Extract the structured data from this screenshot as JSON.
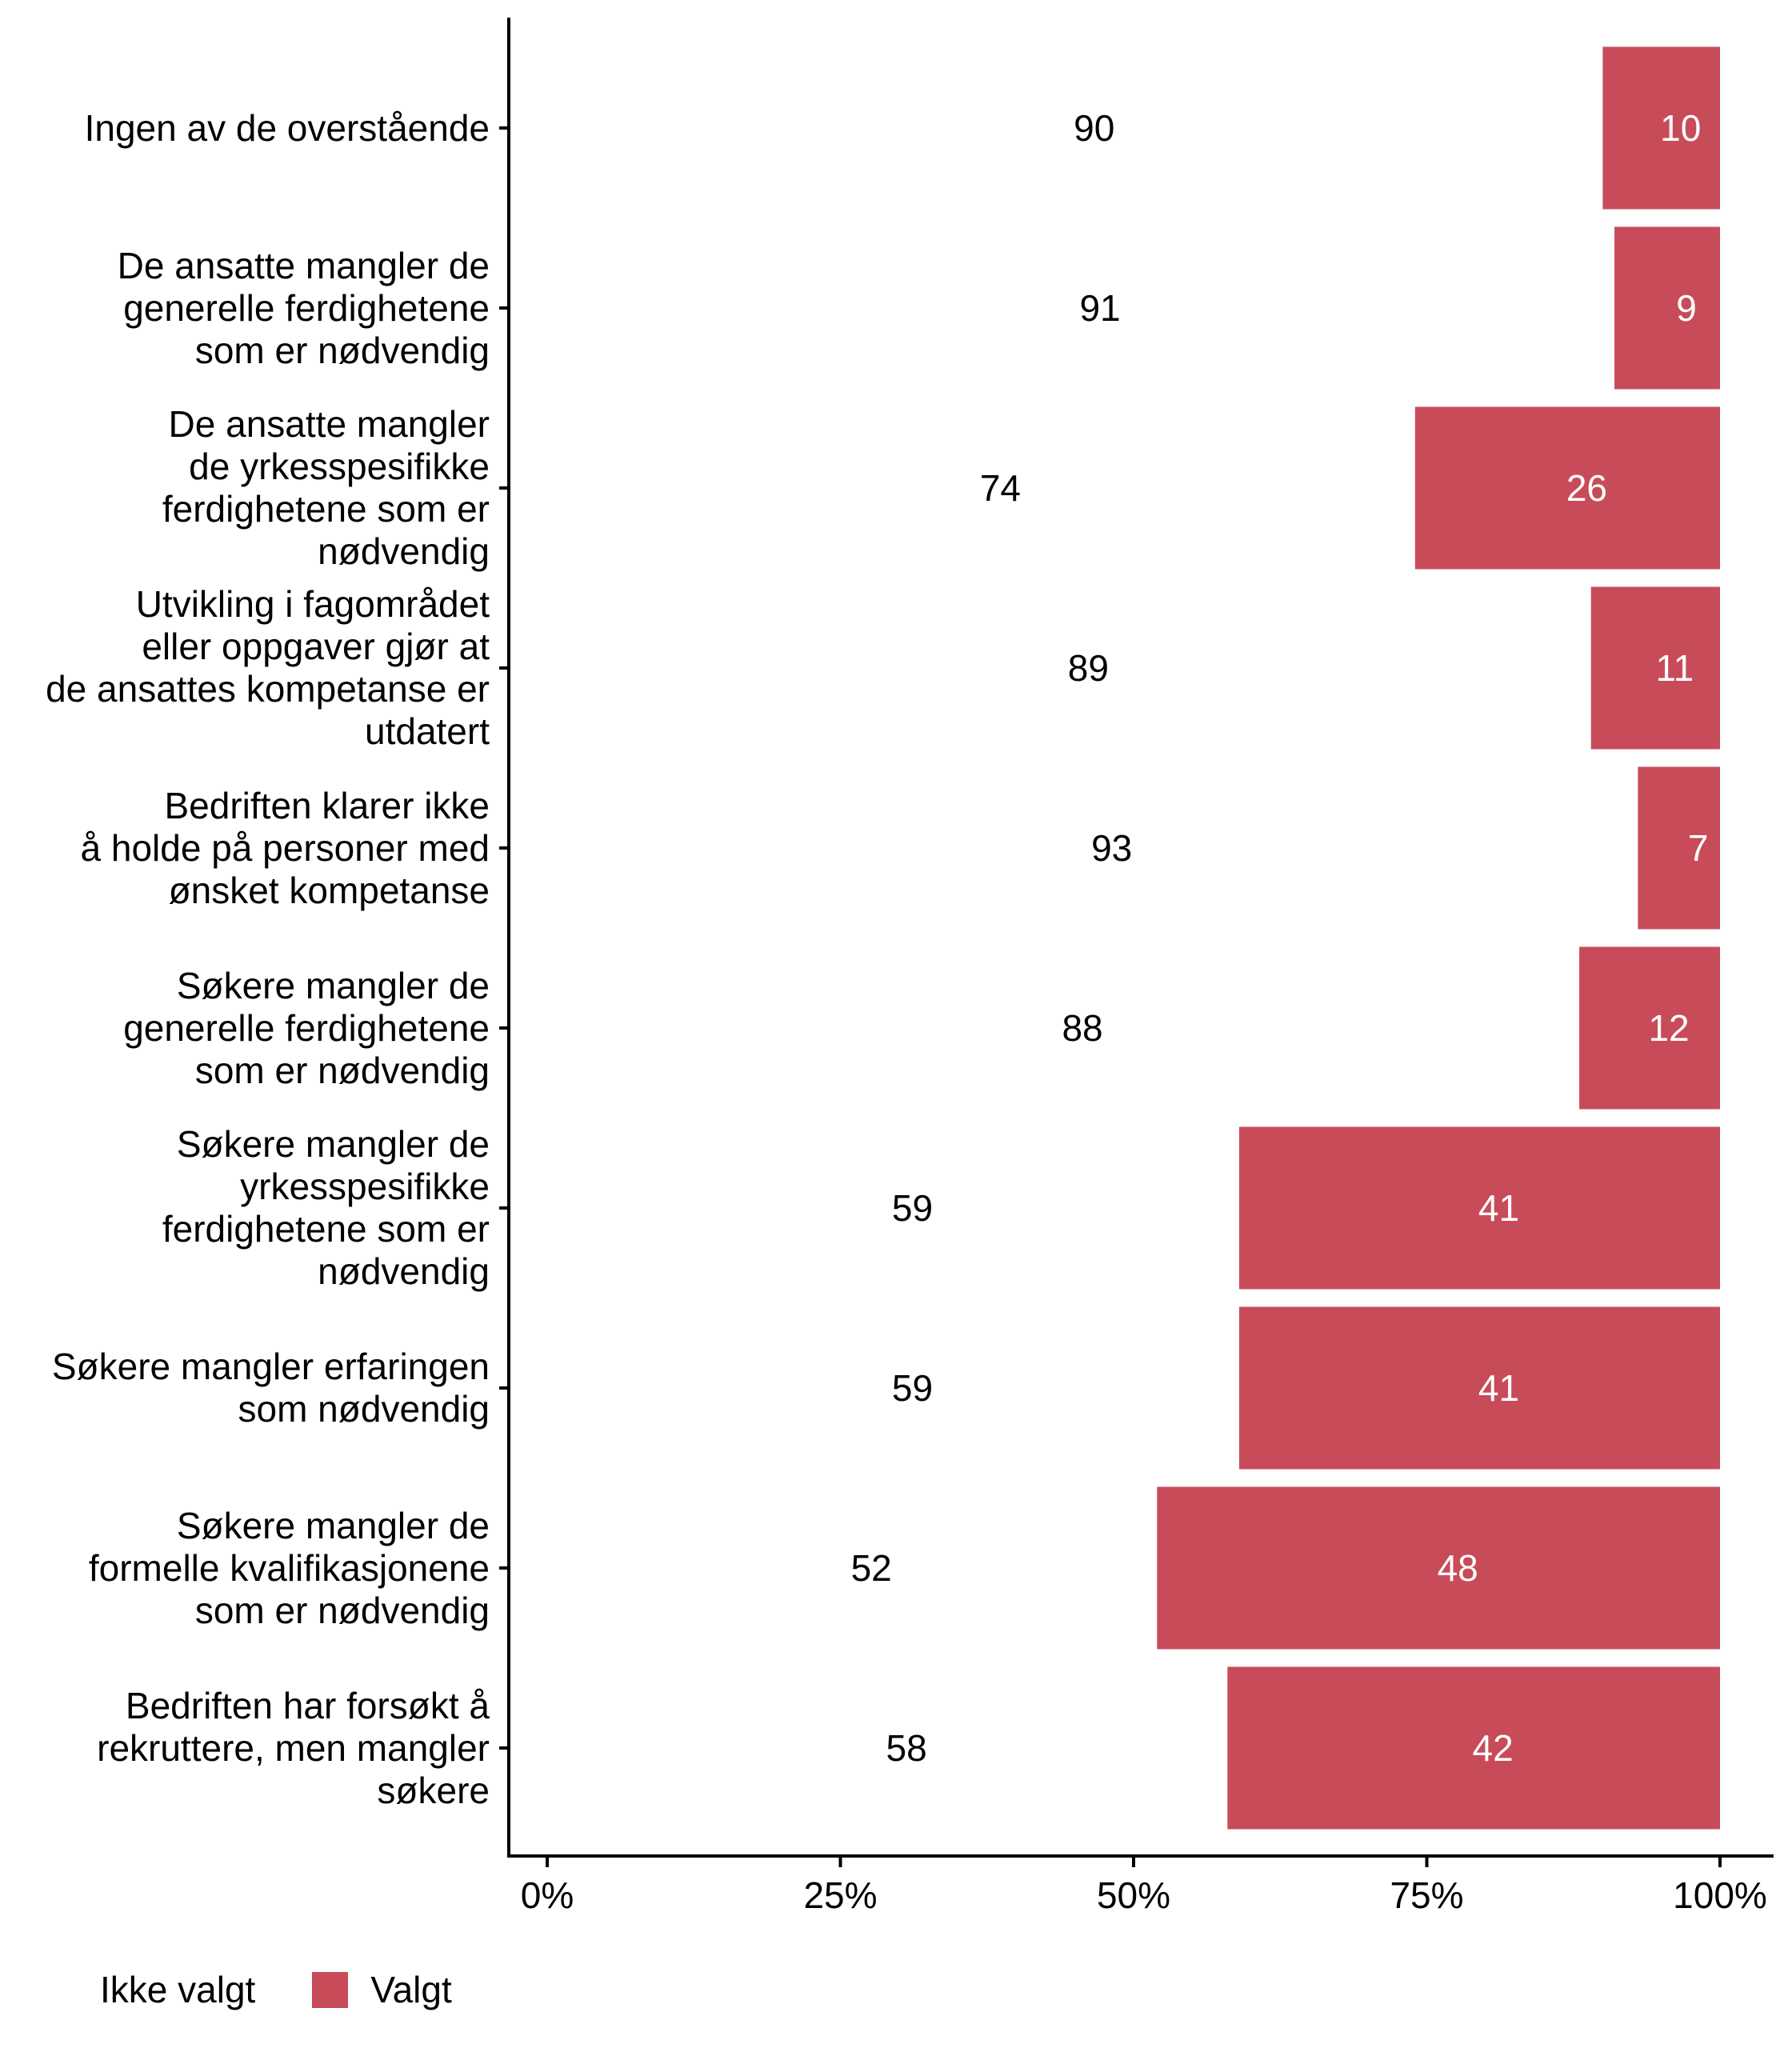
{
  "chart_data": {
    "type": "bar",
    "orientation": "horizontal",
    "stacked": "percent",
    "title": "",
    "xlabel": "",
    "ylabel": "",
    "xlim": [
      0,
      100
    ],
    "grid": false,
    "legend_position": "bottom-left",
    "x_ticks": [
      "0%",
      "25%",
      "50%",
      "75%",
      "100%"
    ],
    "x_tick_values": [
      0,
      25,
      50,
      75,
      100
    ],
    "categories": [
      "Ingen av de overstående",
      "De ansatte mangler de\ngenerelle ferdighetene\nsom er nødvendig",
      "De ansatte mangler\nde yrkesspesifikke\nferdighetene som er\nnødvendig",
      "Utvikling i fagområdet\neller oppgaver gjør at\nde ansattes kompetanse er\nutdatert",
      "Bedriften klarer ikke\nå holde på personer med\nønsket kompetanse",
      "Søkere mangler de\ngenerelle ferdighetene\nsom er nødvendig",
      "Søkere mangler de\nyrkesspesifikke\nferdighetene som er\nnødvendig",
      "Søkere mangler erfaringen\nsom nødvendig",
      "Søkere mangler de\nformelle kvalifikasjonene\nsom er nødvendig",
      "Bedriften har forsøkt å\nrekruttere, men mangler\nsøkere"
    ],
    "series": [
      {
        "name": "Ikke valgt",
        "color": "#ffffff",
        "label_color": "#000000",
        "values": [
          90,
          91,
          74,
          89,
          93,
          88,
          59,
          59,
          52,
          58
        ]
      },
      {
        "name": "Valgt",
        "color": "#C84B5A",
        "label_color": "#ffffff",
        "values": [
          10,
          9,
          26,
          11,
          7,
          12,
          41,
          41,
          48,
          42
        ]
      }
    ]
  },
  "legend": {
    "items": [
      {
        "label": "Ikke valgt",
        "color": "#ffffff"
      },
      {
        "label": "Valgt",
        "color": "#C84B5A"
      }
    ]
  }
}
